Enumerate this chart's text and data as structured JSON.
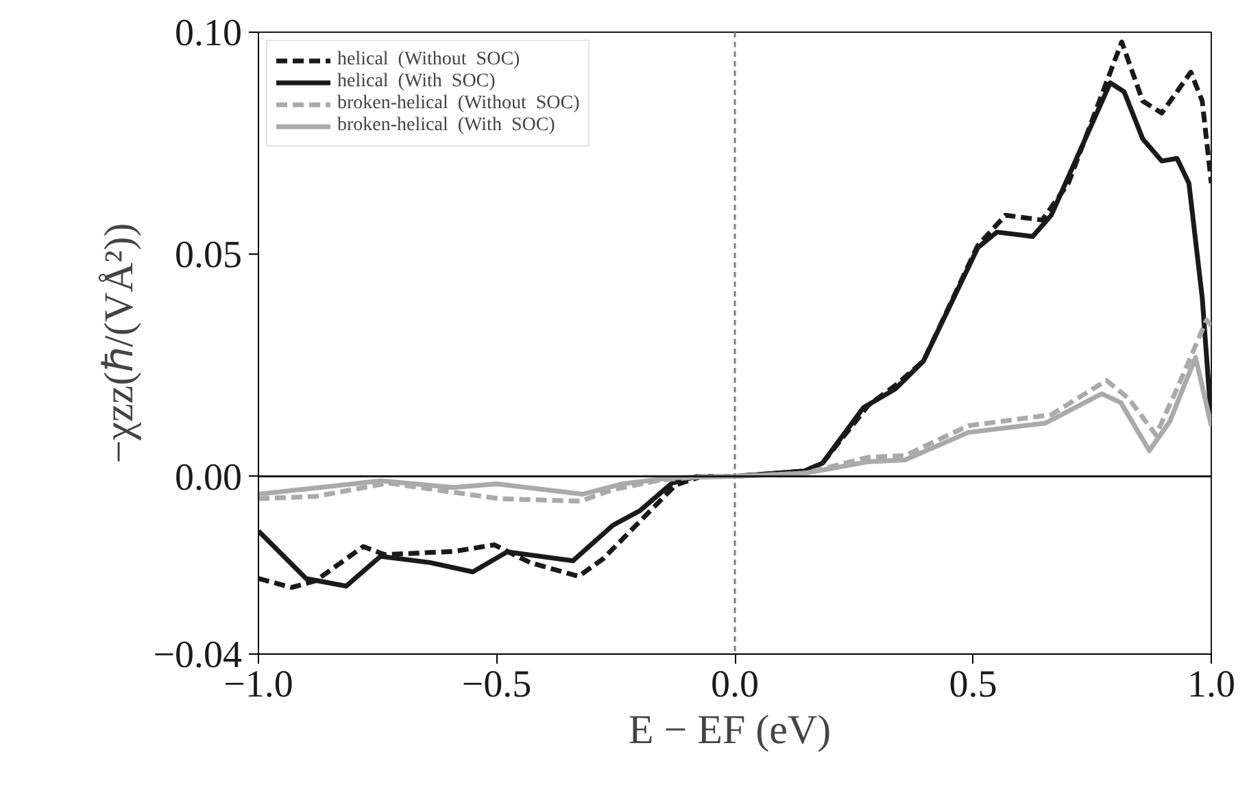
{
  "chart_data": {
    "type": "line",
    "xlabel": "E − EF  (eV)",
    "ylabel": "−χzz(ℏ/(VÅ²))",
    "xlim": [
      -1.0,
      1.0
    ],
    "ylim": [
      -0.04,
      0.1
    ],
    "xticks": [
      {
        "value": -1.0,
        "label": "−1.0"
      },
      {
        "value": -0.5,
        "label": "−0.5"
      },
      {
        "value": 0.0,
        "label": "0.0"
      },
      {
        "value": 0.5,
        "label": "0.5"
      },
      {
        "value": 1.0,
        "label": "1.0"
      }
    ],
    "yticks": [
      {
        "value": -0.04,
        "label": "−0.04"
      },
      {
        "value": 0.0,
        "label": "0.00"
      },
      {
        "value": 0.05,
        "label": "0.05"
      },
      {
        "value": 0.1,
        "label": "0.10"
      }
    ],
    "grid": false,
    "legend": "top left",
    "marker": "none",
    "ref_lines": [
      {
        "axis": "x",
        "value": 0.0,
        "color": "#808080",
        "line_style": "dashed"
      },
      {
        "axis": "y",
        "value": 0.0,
        "color": "#1a1a1a",
        "line_style": "solid"
      }
    ],
    "series": [
      {
        "name": "helical  (Without  SOC)",
        "color": "#1a1a1a",
        "line_style": "dashed",
        "x": [
          -1.0,
          -0.93,
          -0.88,
          -0.78,
          -0.735,
          -0.59,
          -0.505,
          -0.43,
          -0.328,
          -0.276,
          -0.2,
          -0.124,
          -0.07,
          0.0,
          0.146,
          0.184,
          0.28,
          0.337,
          0.396,
          0.51,
          0.568,
          0.645,
          0.7,
          0.812,
          0.856,
          0.896,
          0.957,
          0.981,
          1.0
        ],
        "values": [
          -0.023,
          -0.025,
          -0.0235,
          -0.0158,
          -0.0176,
          -0.0169,
          -0.0154,
          -0.0194,
          -0.0225,
          -0.0185,
          -0.0102,
          -0.0019,
          0.0,
          0.0,
          0.0012,
          0.003,
          0.016,
          0.0205,
          0.026,
          0.052,
          0.0588,
          0.0577,
          0.066,
          0.0978,
          0.0845,
          0.0818,
          0.091,
          0.0845,
          0.066
        ]
      },
      {
        "name": "helical  (With  SOC)",
        "color": "#1a1a1a",
        "line_style": "solid",
        "x": [
          -1.0,
          -0.9,
          -0.816,
          -0.744,
          -0.64,
          -0.55,
          -0.478,
          -0.34,
          -0.256,
          -0.199,
          -0.132,
          -0.08,
          0.0,
          0.146,
          0.184,
          0.27,
          0.337,
          0.396,
          0.51,
          0.55,
          0.625,
          0.664,
          0.788,
          0.817,
          0.856,
          0.896,
          0.928,
          0.953,
          0.981,
          1.0
        ],
        "values": [
          -0.0123,
          -0.023,
          -0.0247,
          -0.018,
          -0.0194,
          -0.0215,
          -0.017,
          -0.019,
          -0.011,
          -0.0077,
          -0.0015,
          0.0,
          0.0,
          0.0012,
          0.003,
          0.0155,
          0.0197,
          0.026,
          0.0515,
          0.055,
          0.054,
          0.0588,
          0.0886,
          0.0866,
          0.076,
          0.071,
          0.0716,
          0.066,
          0.0402,
          0.0124
        ]
      },
      {
        "name": "broken-helical  (Without  SOC)",
        "color": "#aaaaaa",
        "line_style": "dashed",
        "x": [
          -1.0,
          -0.88,
          -0.727,
          -0.496,
          -0.325,
          -0.256,
          -0.16,
          -0.07,
          0.0,
          0.146,
          0.28,
          0.357,
          0.49,
          0.664,
          0.78,
          0.826,
          0.884,
          0.932,
          0.99,
          1.0
        ],
        "values": [
          -0.005,
          -0.0045,
          -0.0015,
          -0.005,
          -0.0056,
          -0.003,
          -0.0009,
          0.0,
          0.0,
          0.0007,
          0.0043,
          0.0047,
          0.0114,
          0.0139,
          0.0216,
          0.0176,
          0.0093,
          0.0207,
          0.0352,
          0.034
        ]
      },
      {
        "name": "broken-helical  (With  SOC)",
        "color": "#aaaaaa",
        "line_style": "solid",
        "x": [
          -1.0,
          -0.744,
          -0.59,
          -0.5,
          -0.32,
          -0.237,
          -0.13,
          0.0,
          0.146,
          0.28,
          0.357,
          0.49,
          0.652,
          0.77,
          0.81,
          0.87,
          0.913,
          0.967,
          1.0
        ],
        "values": [
          -0.004,
          -0.001,
          -0.0025,
          -0.0017,
          -0.004,
          -0.0017,
          -0.0003,
          0.0,
          0.0007,
          0.0033,
          0.0037,
          0.0099,
          0.012,
          0.0186,
          0.0166,
          0.0058,
          0.0124,
          0.0268,
          0.0114
        ]
      }
    ]
  }
}
